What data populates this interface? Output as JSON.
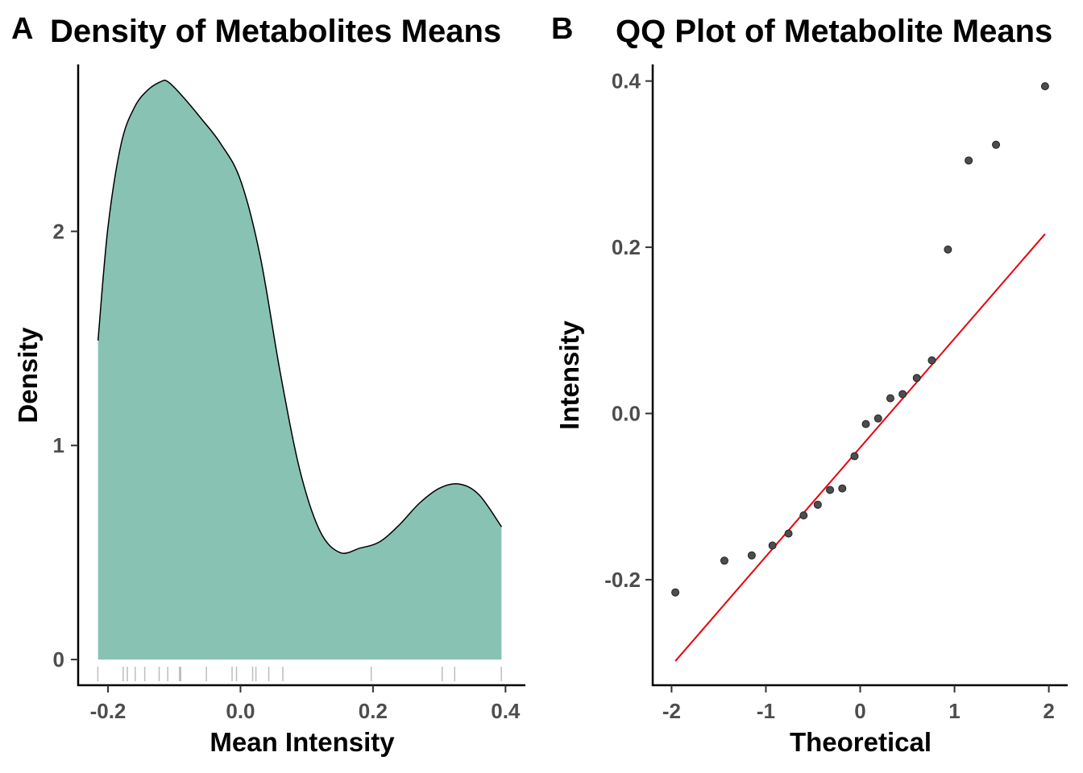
{
  "panel_labels": [
    "A",
    "B"
  ],
  "colors": {
    "density_fill": "#88c2b3",
    "qq_line": "#e8000b",
    "points": "#4d4d4d",
    "rug": "#bdbdbd"
  },
  "chart_data": [
    {
      "type": "area",
      "title": "Density of Metabolites Means",
      "xlabel": "Mean Intensity",
      "ylabel": "Density",
      "xlim": [
        -0.245,
        0.43
      ],
      "ylim": [
        -0.12,
        2.78
      ],
      "xticks": [
        "-0.2",
        "0.0",
        "0.2",
        "0.4"
      ],
      "yticks": [
        "0",
        "1",
        "2"
      ],
      "x": [
        -0.215,
        -0.2,
        -0.18,
        -0.16,
        -0.14,
        -0.12,
        -0.11,
        -0.09,
        -0.06,
        -0.03,
        0.0,
        0.03,
        0.06,
        0.09,
        0.12,
        0.15,
        0.18,
        0.21,
        0.24,
        0.27,
        0.3,
        0.33,
        0.36,
        0.394
      ],
      "y": [
        1.49,
        2.02,
        2.41,
        2.58,
        2.66,
        2.7,
        2.7,
        2.64,
        2.53,
        2.41,
        2.24,
        1.88,
        1.34,
        0.88,
        0.6,
        0.5,
        0.52,
        0.55,
        0.63,
        0.73,
        0.8,
        0.82,
        0.77,
        0.62
      ],
      "rug": [
        -0.2153,
        -0.1771,
        -0.1708,
        -0.1589,
        -0.1445,
        -0.1227,
        -0.1098,
        -0.092,
        -0.0902,
        -0.0514,
        -0.0127,
        -0.006,
        0.0183,
        0.0233,
        0.0427,
        0.0639,
        0.1973,
        0.3044,
        0.3233,
        0.3937
      ]
    },
    {
      "type": "scatter",
      "title": "QQ Plot of Metabolite Means",
      "xlabel": "Theoretical",
      "ylabel": "Intensity",
      "xlim": [
        -2.2,
        2.2
      ],
      "ylim": [
        -0.327,
        0.42
      ],
      "xticks": [
        "-2",
        "-1",
        "0",
        "1",
        "2"
      ],
      "yticks": [
        "-0.2",
        "0.0",
        "0.2",
        "0.4"
      ],
      "points": {
        "x": [
          -1.96,
          -1.44,
          -1.15,
          -0.93,
          -0.76,
          -0.6,
          -0.45,
          -0.32,
          -0.19,
          -0.06,
          0.06,
          0.19,
          0.32,
          0.45,
          0.6,
          0.76,
          0.93,
          1.15,
          1.44,
          1.96
        ],
        "y": [
          -0.2153,
          -0.1771,
          -0.1708,
          -0.1589,
          -0.1445,
          -0.1227,
          -0.1098,
          -0.092,
          -0.0902,
          -0.0514,
          -0.0127,
          -0.006,
          0.0183,
          0.0233,
          0.0427,
          0.0639,
          0.1973,
          0.3044,
          0.3233,
          0.3937
        ]
      },
      "reference_line": {
        "x": [
          -1.96,
          1.96
        ],
        "y": [
          -0.298,
          0.216
        ]
      }
    }
  ]
}
